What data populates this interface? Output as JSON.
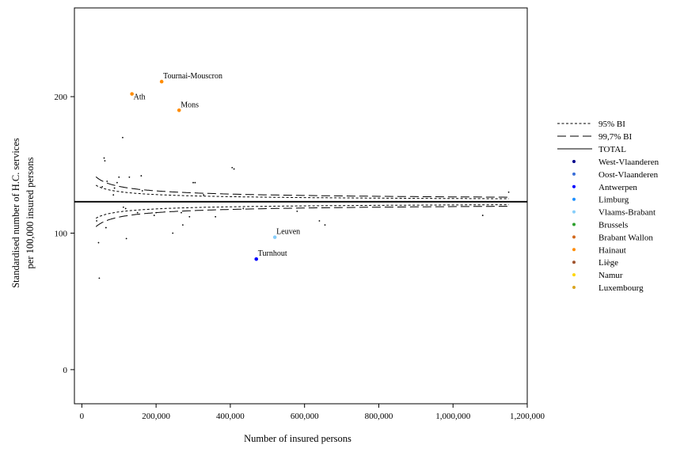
{
  "chart_data": {
    "type": "scatter",
    "title": "",
    "xlabel": "Number of insured persons",
    "ylabel_lines": [
      "Standardised number of H.C. services",
      "per 100,000 insured persons"
    ],
    "xlim": [
      -20000,
      1200000
    ],
    "ylim": [
      -25,
      265
    ],
    "x_ticks": [
      0,
      200000,
      400000,
      600000,
      800000,
      1000000,
      1200000
    ],
    "x_tick_labels": [
      "0",
      "200,000",
      "400,000",
      "600,000",
      "800,000",
      "1,000,000",
      "1,200,000"
    ],
    "y_ticks": [
      0,
      100,
      200
    ],
    "y_tick_labels": [
      "0",
      "100",
      "200"
    ],
    "total": 123,
    "funnel": {
      "x_min": 38000,
      "x_max": 1150000,
      "sigma_coef": 1200,
      "z95": 1.96,
      "z997": 2.97
    },
    "legend": {
      "lines": [
        {
          "label": "95% BI",
          "style": "short-dash"
        },
        {
          "label": "99,7% BI",
          "style": "long-dash"
        },
        {
          "label": "TOTAL",
          "style": "solid"
        }
      ],
      "provinces": [
        {
          "label": "West-Vlaanderen",
          "color": "#00008b"
        },
        {
          "label": "Oost-Vlaanderen",
          "color": "#3a6fd8"
        },
        {
          "label": "Antwerpen",
          "color": "#0000ff"
        },
        {
          "label": "Limburg",
          "color": "#1e90ff"
        },
        {
          "label": "Vlaams-Brabant",
          "color": "#87cefa"
        },
        {
          "label": "Brussels",
          "color": "#2ca02c"
        },
        {
          "label": "Brabant Wallon",
          "color": "#d2691e"
        },
        {
          "label": "Hainaut",
          "color": "#ff8c00"
        },
        {
          "label": "Liège",
          "color": "#a0522d"
        },
        {
          "label": "Namur",
          "color": "#ffd700"
        },
        {
          "label": "Luxembourg",
          "color": "#daa520"
        }
      ]
    },
    "labeled_points": [
      {
        "name": "Tournai-Mouscron",
        "x": 215000,
        "y": 211,
        "color": "#ff8c00"
      },
      {
        "name": "Ath",
        "x": 135000,
        "y": 202,
        "color": "#ff8c00"
      },
      {
        "name": "Mons",
        "x": 262000,
        "y": 190,
        "color": "#ff8c00"
      },
      {
        "name": "Leuven",
        "x": 520000,
        "y": 97,
        "color": "#87cefa"
      },
      {
        "name": "Turnhout",
        "x": 470000,
        "y": 81,
        "color": "#0000ff"
      }
    ],
    "other_points": [
      [
        60000,
        155
      ],
      [
        62000,
        153
      ],
      [
        55000,
        134
      ],
      [
        68000,
        138
      ],
      [
        85000,
        128
      ],
      [
        88000,
        133
      ],
      [
        95000,
        137
      ],
      [
        100000,
        141
      ],
      [
        110000,
        170
      ],
      [
        128000,
        141
      ],
      [
        160000,
        142
      ],
      [
        163000,
        131
      ],
      [
        300000,
        137
      ],
      [
        305000,
        137
      ],
      [
        328000,
        128
      ],
      [
        405000,
        148
      ],
      [
        410000,
        147
      ],
      [
        1150000,
        130
      ],
      [
        40000,
        109
      ],
      [
        45000,
        93
      ],
      [
        47000,
        67
      ],
      [
        65000,
        104
      ],
      [
        112000,
        119
      ],
      [
        118000,
        118
      ],
      [
        120000,
        96
      ],
      [
        150000,
        115
      ],
      [
        195000,
        113
      ],
      [
        200000,
        115
      ],
      [
        245000,
        100
      ],
      [
        268000,
        115
      ],
      [
        272000,
        106
      ],
      [
        290000,
        112
      ],
      [
        360000,
        112
      ],
      [
        435000,
        118
      ],
      [
        580000,
        116
      ],
      [
        640000,
        109
      ],
      [
        655000,
        106
      ],
      [
        1080000,
        113
      ]
    ]
  }
}
